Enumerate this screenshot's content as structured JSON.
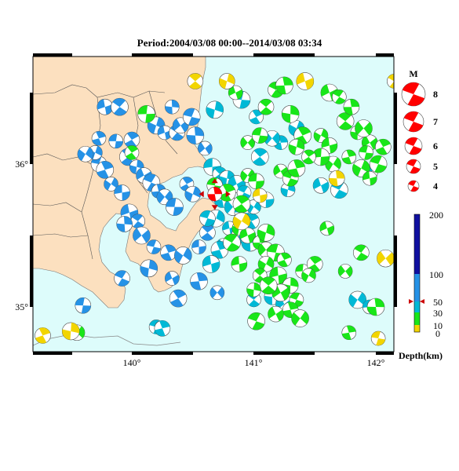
{
  "title": "Period:2004/03/08 00:00--2014/03/08 03:34",
  "lon_labels": [
    "140°",
    "141°",
    "142°"
  ],
  "lat_labels": [
    "36°",
    "35°"
  ],
  "magnitude_legend": {
    "title": "M",
    "items": [
      "8",
      "7",
      "6",
      "5",
      "4"
    ]
  },
  "depth_legend": {
    "ticks": [
      "200",
      "100",
      "50",
      "30",
      "10",
      "0"
    ],
    "label": "Depth(km)",
    "colors": {
      "shallow_0_10": "#f2d500",
      "10_30": "#19e619",
      "30_50": "#00b9d6",
      "50_100": "#2592e6",
      "100_200": "#1010a0"
    }
  },
  "colors": {
    "land": "#fce0bf",
    "sea": "#ddfcfb",
    "highlight_event": "#ff0000",
    "arrow": "#cc0000"
  },
  "highlighted_event": {
    "lon": 140.68,
    "lat": 35.79,
    "depth_class": "highlight"
  },
  "events": [
    {
      "lon": 139.87,
      "lat": 36.16,
      "d": "b"
    },
    {
      "lon": 140.0,
      "lat": 36.17,
      "d": "b"
    },
    {
      "lon": 140.2,
      "lat": 36.27,
      "d": "b"
    },
    {
      "lon": 140.27,
      "lat": 36.22,
      "d": "b"
    },
    {
      "lon": 140.37,
      "lat": 36.22,
      "d": "b"
    },
    {
      "lon": 140.52,
      "lat": 36.2,
      "d": "b"
    },
    {
      "lon": 140.6,
      "lat": 36.11,
      "d": "b"
    },
    {
      "lon": 139.73,
      "lat": 36.0,
      "d": "b"
    },
    {
      "lon": 139.78,
      "lat": 35.96,
      "d": "b"
    },
    {
      "lon": 139.83,
      "lat": 35.86,
      "d": "b"
    },
    {
      "lon": 139.92,
      "lat": 35.8,
      "d": "b"
    },
    {
      "lon": 139.97,
      "lat": 36.05,
      "d": "b"
    },
    {
      "lon": 140.04,
      "lat": 35.98,
      "d": "b"
    },
    {
      "lon": 140.1,
      "lat": 35.92,
      "d": "b"
    },
    {
      "lon": 140.16,
      "lat": 35.87,
      "d": "b"
    },
    {
      "lon": 140.22,
      "lat": 35.81,
      "d": "b"
    },
    {
      "lon": 140.27,
      "lat": 35.77,
      "d": "b"
    },
    {
      "lon": 140.35,
      "lat": 35.7,
      "d": "b"
    },
    {
      "lon": 140.45,
      "lat": 35.86,
      "d": "b"
    },
    {
      "lon": 140.5,
      "lat": 35.79,
      "d": "b"
    },
    {
      "lon": 139.98,
      "lat": 35.66,
      "d": "b"
    },
    {
      "lon": 140.05,
      "lat": 35.6,
      "d": "b"
    },
    {
      "lon": 139.94,
      "lat": 35.58,
      "d": "b"
    },
    {
      "lon": 140.08,
      "lat": 35.5,
      "d": "b"
    },
    {
      "lon": 140.18,
      "lat": 35.42,
      "d": "b"
    },
    {
      "lon": 140.3,
      "lat": 35.38,
      "d": "b"
    },
    {
      "lon": 140.42,
      "lat": 35.36,
      "d": "b"
    },
    {
      "lon": 140.55,
      "lat": 35.42,
      "d": "b"
    },
    {
      "lon": 140.62,
      "lat": 35.52,
      "d": "b"
    },
    {
      "lon": 140.14,
      "lat": 35.27,
      "d": "b"
    },
    {
      "lon": 140.33,
      "lat": 35.2,
      "d": "b"
    },
    {
      "lon": 139.92,
      "lat": 35.2,
      "d": "b"
    },
    {
      "lon": 140.55,
      "lat": 35.18,
      "d": "b"
    },
    {
      "lon": 140.7,
      "lat": 35.1,
      "d": "b"
    },
    {
      "lon": 139.6,
      "lat": 35.01,
      "d": "b"
    },
    {
      "lon": 140.38,
      "lat": 35.06,
      "d": "b"
    },
    {
      "lon": 139.7,
      "lat": 36.08,
      "d": "b"
    },
    {
      "lon": 139.78,
      "lat": 36.4,
      "d": "b"
    },
    {
      "lon": 139.9,
      "lat": 36.4,
      "d": "b"
    },
    {
      "lon": 140.33,
      "lat": 36.4,
      "d": "b"
    },
    {
      "lon": 140.4,
      "lat": 36.27,
      "d": "b"
    },
    {
      "lon": 140.49,
      "lat": 36.33,
      "d": "b"
    },
    {
      "lon": 139.73,
      "lat": 36.18,
      "d": "b"
    },
    {
      "lon": 139.62,
      "lat": 36.07,
      "d": "b"
    },
    {
      "lon": 140.66,
      "lat": 35.98,
      "d": "c"
    },
    {
      "lon": 140.72,
      "lat": 35.93,
      "d": "c"
    },
    {
      "lon": 140.78,
      "lat": 35.9,
      "d": "c"
    },
    {
      "lon": 140.86,
      "lat": 35.86,
      "d": "c"
    },
    {
      "lon": 140.92,
      "lat": 35.8,
      "d": "c"
    },
    {
      "lon": 140.74,
      "lat": 35.75,
      "d": "c"
    },
    {
      "lon": 140.83,
      "lat": 35.7,
      "d": "c"
    },
    {
      "lon": 140.9,
      "lat": 35.66,
      "d": "c"
    },
    {
      "lon": 140.98,
      "lat": 35.6,
      "d": "c"
    },
    {
      "lon": 140.69,
      "lat": 35.62,
      "d": "c"
    },
    {
      "lon": 140.8,
      "lat": 35.55,
      "d": "c"
    },
    {
      "lon": 140.88,
      "lat": 35.5,
      "d": "c"
    },
    {
      "lon": 140.97,
      "lat": 35.45,
      "d": "c"
    },
    {
      "lon": 140.75,
      "lat": 35.43,
      "d": "c"
    },
    {
      "lon": 140.62,
      "lat": 35.62,
      "d": "c"
    },
    {
      "lon": 140.72,
      "lat": 35.4,
      "d": "c"
    },
    {
      "lon": 141.0,
      "lat": 35.7,
      "d": "c"
    },
    {
      "lon": 141.1,
      "lat": 35.75,
      "d": "c"
    },
    {
      "lon": 141.05,
      "lat": 36.05,
      "d": "c"
    },
    {
      "lon": 141.28,
      "lat": 35.82,
      "d": "c"
    },
    {
      "lon": 141.55,
      "lat": 35.85,
      "d": "c"
    },
    {
      "lon": 141.7,
      "lat": 35.82,
      "d": "c"
    },
    {
      "lon": 141.22,
      "lat": 36.15,
      "d": "c"
    },
    {
      "lon": 141.15,
      "lat": 36.18,
      "d": "c"
    },
    {
      "lon": 140.9,
      "lat": 36.45,
      "d": "c"
    },
    {
      "lon": 141.02,
      "lat": 36.33,
      "d": "c"
    },
    {
      "lon": 141.35,
      "lat": 36.25,
      "d": "c"
    },
    {
      "lon": 140.65,
      "lat": 35.3,
      "d": "c"
    },
    {
      "lon": 141.0,
      "lat": 35.05,
      "d": "c"
    },
    {
      "lon": 141.15,
      "lat": 35.07,
      "d": "c"
    },
    {
      "lon": 141.25,
      "lat": 35.02,
      "d": "c"
    },
    {
      "lon": 140.2,
      "lat": 34.86,
      "d": "c"
    },
    {
      "lon": 140.25,
      "lat": 34.85,
      "d": "c"
    },
    {
      "lon": 141.85,
      "lat": 35.05,
      "d": "c"
    },
    {
      "lon": 141.95,
      "lat": 35.0,
      "d": "c"
    },
    {
      "lon": 141.95,
      "lat": 35.94,
      "d": "c"
    },
    {
      "lon": 140.68,
      "lat": 36.38,
      "d": "c"
    },
    {
      "lon": 140.85,
      "lat": 36.5,
      "d": "g"
    },
    {
      "lon": 141.18,
      "lat": 36.52,
      "d": "g"
    },
    {
      "lon": 141.25,
      "lat": 36.55,
      "d": "g"
    },
    {
      "lon": 140.95,
      "lat": 36.15,
      "d": "g"
    },
    {
      "lon": 141.05,
      "lat": 36.2,
      "d": "g"
    },
    {
      "lon": 141.4,
      "lat": 36.2,
      "d": "g"
    },
    {
      "lon": 141.55,
      "lat": 36.2,
      "d": "g"
    },
    {
      "lon": 141.62,
      "lat": 36.13,
      "d": "g"
    },
    {
      "lon": 141.75,
      "lat": 36.3,
      "d": "g"
    },
    {
      "lon": 141.85,
      "lat": 36.22,
      "d": "g"
    },
    {
      "lon": 141.95,
      "lat": 36.15,
      "d": "g"
    },
    {
      "lon": 142.02,
      "lat": 36.0,
      "d": "g"
    },
    {
      "lon": 141.78,
      "lat": 36.05,
      "d": "g"
    },
    {
      "lon": 141.65,
      "lat": 36.0,
      "d": "g"
    },
    {
      "lon": 141.55,
      "lat": 36.05,
      "d": "g"
    },
    {
      "lon": 141.45,
      "lat": 36.05,
      "d": "g"
    },
    {
      "lon": 141.35,
      "lat": 36.12,
      "d": "g"
    },
    {
      "lon": 141.62,
      "lat": 36.5,
      "d": "g"
    },
    {
      "lon": 141.7,
      "lat": 36.47,
      "d": "g"
    },
    {
      "lon": 141.8,
      "lat": 36.4,
      "d": "g"
    },
    {
      "lon": 141.9,
      "lat": 36.25,
      "d": "g"
    },
    {
      "lon": 141.92,
      "lat": 36.08,
      "d": "g"
    },
    {
      "lon": 142.06,
      "lat": 36.12,
      "d": "g"
    },
    {
      "lon": 141.88,
      "lat": 35.97,
      "d": "g"
    },
    {
      "lon": 141.95,
      "lat": 35.9,
      "d": "g"
    },
    {
      "lon": 141.1,
      "lat": 36.4,
      "d": "g"
    },
    {
      "lon": 141.3,
      "lat": 36.35,
      "d": "g"
    },
    {
      "lon": 141.22,
      "lat": 35.95,
      "d": "g"
    },
    {
      "lon": 141.3,
      "lat": 35.9,
      "d": "g"
    },
    {
      "lon": 141.35,
      "lat": 35.97,
      "d": "g"
    },
    {
      "lon": 140.95,
      "lat": 35.92,
      "d": "g"
    },
    {
      "lon": 141.02,
      "lat": 35.88,
      "d": "g"
    },
    {
      "lon": 140.9,
      "lat": 35.72,
      "d": "g"
    },
    {
      "lon": 140.88,
      "lat": 35.55,
      "d": "g"
    },
    {
      "lon": 140.95,
      "lat": 35.5,
      "d": "g"
    },
    {
      "lon": 140.82,
      "lat": 35.45,
      "d": "g"
    },
    {
      "lon": 141.05,
      "lat": 35.45,
      "d": "g"
    },
    {
      "lon": 141.1,
      "lat": 35.4,
      "d": "g"
    },
    {
      "lon": 141.18,
      "lat": 35.38,
      "d": "g"
    },
    {
      "lon": 141.25,
      "lat": 35.33,
      "d": "g"
    },
    {
      "lon": 141.1,
      "lat": 35.3,
      "d": "g"
    },
    {
      "lon": 141.2,
      "lat": 35.22,
      "d": "g"
    },
    {
      "lon": 141.05,
      "lat": 35.22,
      "d": "g"
    },
    {
      "lon": 141.3,
      "lat": 35.15,
      "d": "g"
    },
    {
      "lon": 141.22,
      "lat": 35.1,
      "d": "g"
    },
    {
      "lon": 141.35,
      "lat": 35.05,
      "d": "g"
    },
    {
      "lon": 141.3,
      "lat": 34.98,
      "d": "g"
    },
    {
      "lon": 141.38,
      "lat": 34.92,
      "d": "g"
    },
    {
      "lon": 141.4,
      "lat": 35.25,
      "d": "g"
    },
    {
      "lon": 141.5,
      "lat": 35.3,
      "d": "g"
    },
    {
      "lon": 141.1,
      "lat": 35.52,
      "d": "g"
    },
    {
      "lon": 141.6,
      "lat": 35.55,
      "d": "g"
    },
    {
      "lon": 141.88,
      "lat": 35.38,
      "d": "g"
    },
    {
      "lon": 142.0,
      "lat": 35.0,
      "d": "g"
    },
    {
      "lon": 141.75,
      "lat": 35.25,
      "d": "g"
    },
    {
      "lon": 140.68,
      "lat": 35.85,
      "d": "g"
    },
    {
      "lon": 140.78,
      "lat": 35.8,
      "d": "g"
    },
    {
      "lon": 141.45,
      "lat": 35.22,
      "d": "g"
    },
    {
      "lon": 140.88,
      "lat": 35.3,
      "d": "g"
    },
    {
      "lon": 141.12,
      "lat": 35.15,
      "d": "g"
    },
    {
      "lon": 141.0,
      "lat": 35.12,
      "d": "g"
    },
    {
      "lon": 141.18,
      "lat": 34.95,
      "d": "g"
    },
    {
      "lon": 141.02,
      "lat": 34.9,
      "d": "g"
    },
    {
      "lon": 141.78,
      "lat": 34.82,
      "d": "g"
    },
    {
      "lon": 139.55,
      "lat": 34.82,
      "d": "g"
    },
    {
      "lon": 140.12,
      "lat": 36.35,
      "d": "g"
    },
    {
      "lon": 140.0,
      "lat": 36.08,
      "d": "g"
    },
    {
      "lon": 140.78,
      "lat": 36.58,
      "d": "y"
    },
    {
      "lon": 141.42,
      "lat": 36.58,
      "d": "y"
    },
    {
      "lon": 142.15,
      "lat": 36.58,
      "d": "y"
    },
    {
      "lon": 141.68,
      "lat": 35.9,
      "d": "y"
    },
    {
      "lon": 142.08,
      "lat": 35.34,
      "d": "y"
    },
    {
      "lon": 142.02,
      "lat": 34.78,
      "d": "y"
    },
    {
      "lon": 139.27,
      "lat": 34.8,
      "d": "y"
    },
    {
      "lon": 140.9,
      "lat": 35.6,
      "d": "y"
    },
    {
      "lon": 141.05,
      "lat": 35.78,
      "d": "y"
    },
    {
      "lon": 140.52,
      "lat": 36.58,
      "d": "y"
    },
    {
      "lon": 139.5,
      "lat": 34.83,
      "d": "y"
    }
  ]
}
